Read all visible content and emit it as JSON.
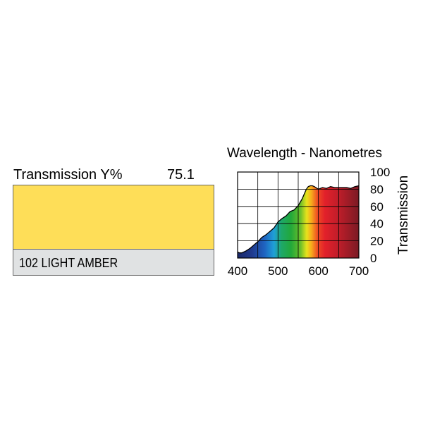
{
  "swatch": {
    "transmission_label": "Transmission Y%",
    "transmission_value": "75.1",
    "filter_name": "102 LIGHT AMBER",
    "color": "#fede58"
  },
  "chart_data": {
    "type": "area",
    "title": "Wavelength - Nanometres",
    "xlabel": "",
    "ylabel": "Transmission",
    "xlim": [
      400,
      700
    ],
    "ylim": [
      0,
      100
    ],
    "x_ticks": [
      400,
      500,
      600,
      700
    ],
    "y_ticks": [
      0,
      20,
      40,
      60,
      80,
      100
    ],
    "x_grid": [
      400,
      450,
      500,
      550,
      600,
      650,
      700
    ],
    "y_grid": [
      0,
      20,
      40,
      60,
      80,
      100
    ],
    "grid": true,
    "fill": "visible spectrum gradient",
    "series": [
      {
        "x": [
          400,
          405,
          410,
          420,
          430,
          440,
          450,
          460,
          470,
          480,
          490,
          500,
          510,
          520,
          530,
          540,
          550,
          560,
          570,
          575,
          580,
          585,
          590,
          600,
          610,
          620,
          630,
          640,
          650,
          660,
          670,
          680,
          690,
          700
        ],
        "values": [
          7,
          6,
          6,
          8,
          11,
          15,
          19,
          24,
          27,
          31,
          35,
          42,
          46,
          49,
          54,
          56,
          61,
          69,
          80,
          83,
          84,
          84,
          83,
          80,
          82,
          81,
          83,
          82,
          82,
          82,
          82,
          81,
          83,
          84
        ]
      }
    ]
  }
}
